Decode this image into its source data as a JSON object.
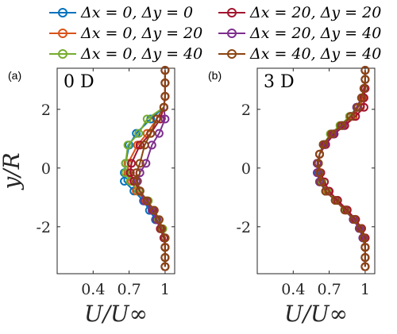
{
  "chart_data": [
    {
      "type": "line",
      "panel_label": "(a)",
      "title": "0 D",
      "xlabel": "U/U∞",
      "ylabel": "y/R",
      "xlim": [
        0.1,
        1.08
      ],
      "ylim": [
        -3.6,
        3.4
      ],
      "xticks": [
        "0.4",
        "0.7",
        "1"
      ],
      "yticks": [
        "-2",
        "0",
        "2"
      ],
      "grid": false,
      "y": [
        3.33,
        2.9,
        2.44,
        2.07,
        1.67,
        1.18,
        0.78,
        0.16,
        -0.16,
        -0.45,
        -0.78,
        -1.12,
        -1.44,
        -1.76,
        -2.07,
        -2.38,
        -2.7,
        -3.05,
        -3.36
      ],
      "series": [
        {
          "name": "Δx = 0, Δy = 0",
          "color": "#0072BD",
          "values": [
            1.0,
            1.0,
            1.0,
            0.99,
            0.88,
            0.76,
            0.7,
            0.67,
            0.66,
            0.66,
            0.74,
            0.82,
            0.87,
            0.92,
            0.97,
            1.0,
            1.0,
            1.0,
            1.0
          ]
        },
        {
          "name": "Δx = 0, Δy = 20",
          "color": "#D95319",
          "values": [
            1.0,
            1.0,
            1.0,
            0.99,
            0.93,
            0.85,
            0.77,
            0.69,
            0.69,
            0.72,
            0.76,
            0.84,
            0.91,
            0.95,
            0.98,
            1.0,
            1.0,
            1.0,
            1.0
          ]
        },
        {
          "name": "Δx = 0, Δy = 40",
          "color": "#77AC30",
          "values": [
            1.0,
            1.0,
            1.0,
            0.99,
            0.85,
            0.78,
            0.69,
            0.67,
            0.67,
            0.71,
            0.78,
            0.86,
            0.9,
            0.94,
            0.98,
            1.0,
            1.0,
            1.0,
            1.0
          ]
        },
        {
          "name": "Δx = 20, Δy = 20",
          "color": "#A2142F",
          "values": [
            1.0,
            1.0,
            1.0,
            0.99,
            0.96,
            0.88,
            0.79,
            0.72,
            0.71,
            0.74,
            0.79,
            0.85,
            0.9,
            0.93,
            0.96,
            0.99,
            1.0,
            1.0,
            1.0
          ]
        },
        {
          "name": "Δx = 20, Δy = 40",
          "color": "#7E2F8E",
          "values": [
            1.0,
            1.0,
            1.0,
            0.99,
            1.0,
            0.95,
            0.89,
            0.84,
            0.79,
            0.77,
            0.79,
            0.83,
            0.89,
            0.93,
            0.97,
            1.0,
            1.0,
            1.0,
            1.0
          ]
        },
        {
          "name": "Δx = 40, Δy = 40",
          "color": "#8B4513",
          "values": [
            1.0,
            1.0,
            1.0,
            0.99,
            0.93,
            0.88,
            0.83,
            0.79,
            0.76,
            0.76,
            0.79,
            0.85,
            0.91,
            0.95,
            0.97,
            1.0,
            1.0,
            1.0,
            1.0
          ]
        }
      ]
    },
    {
      "type": "line",
      "panel_label": "(b)",
      "title": "3 D",
      "xlabel": "U/U∞",
      "ylabel": "",
      "xlim": [
        0.1,
        1.08
      ],
      "ylim": [
        -3.6,
        3.4
      ],
      "xticks": [
        "0.4",
        "0.7",
        "1"
      ],
      "yticks": [
        "-2",
        "0",
        "2"
      ],
      "grid": false,
      "y": [
        3.33,
        3.02,
        2.71,
        2.39,
        2.07,
        1.76,
        1.45,
        1.16,
        0.8,
        0.47,
        0.16,
        -0.16,
        -0.47,
        -0.79,
        -1.1,
        -1.43,
        -1.75,
        -2.06,
        -2.38,
        -2.7,
        -3.05,
        -3.36
      ],
      "series": [
        {
          "name": "Δx = 0, Δy = 0",
          "color": "#0072BD",
          "values": [
            1.0,
            1.0,
            0.99,
            0.97,
            0.93,
            0.88,
            0.81,
            0.74,
            0.66,
            0.62,
            0.6,
            0.61,
            0.62,
            0.67,
            0.76,
            0.84,
            0.91,
            0.96,
            0.99,
            1.0,
            1.0,
            1.0
          ]
        },
        {
          "name": "Δx = 0, Δy = 20",
          "color": "#D95319",
          "values": [
            1.0,
            1.0,
            0.99,
            0.98,
            0.96,
            0.9,
            0.82,
            0.74,
            0.67,
            0.62,
            0.6,
            0.62,
            0.64,
            0.69,
            0.76,
            0.84,
            0.92,
            0.97,
            1.0,
            1.0,
            1.0,
            1.0
          ]
        },
        {
          "name": "Δx = 0, Δy = 40",
          "color": "#77AC30",
          "values": [
            1.0,
            1.0,
            0.99,
            0.97,
            0.93,
            0.87,
            0.79,
            0.71,
            0.65,
            0.62,
            0.61,
            0.62,
            0.64,
            0.68,
            0.76,
            0.84,
            0.91,
            0.96,
            0.99,
            1.0,
            1.0,
            1.0
          ]
        },
        {
          "name": "Δx = 20, Δy = 20",
          "color": "#A2142F",
          "values": [
            1.0,
            1.0,
            1.0,
            0.99,
            0.99,
            0.92,
            0.83,
            0.74,
            0.67,
            0.62,
            0.61,
            0.63,
            0.66,
            0.7,
            0.77,
            0.85,
            0.92,
            0.97,
            1.0,
            1.0,
            1.0,
            1.0
          ]
        },
        {
          "name": "Δx = 20, Δy = 40",
          "color": "#7E2F8E",
          "values": [
            1.0,
            1.0,
            0.99,
            0.97,
            0.93,
            0.88,
            0.81,
            0.73,
            0.66,
            0.62,
            0.6,
            0.6,
            0.62,
            0.67,
            0.75,
            0.83,
            0.9,
            0.95,
            0.98,
            1.0,
            1.0,
            1.0
          ]
        },
        {
          "name": "Δx = 40, Δy = 40",
          "color": "#8B4513",
          "values": [
            1.0,
            1.0,
            0.99,
            0.97,
            0.94,
            0.88,
            0.8,
            0.72,
            0.65,
            0.62,
            0.61,
            0.62,
            0.63,
            0.67,
            0.75,
            0.83,
            0.91,
            0.96,
            0.99,
            1.0,
            1.0,
            1.0
          ]
        }
      ]
    }
  ]
}
